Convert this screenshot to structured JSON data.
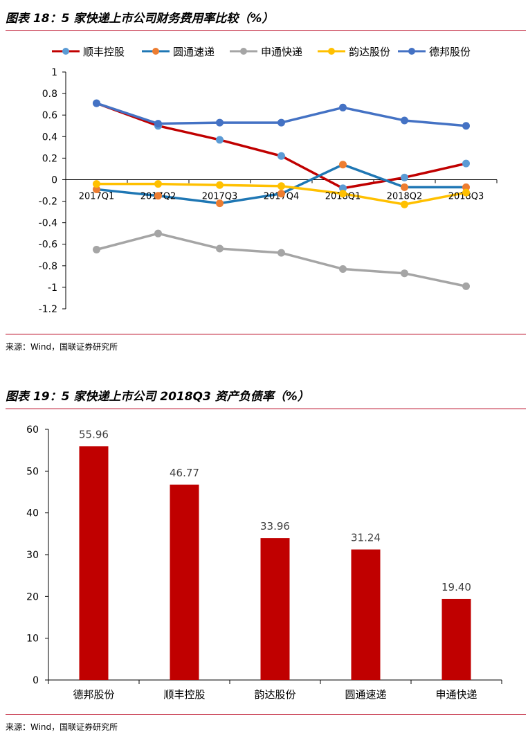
{
  "charts": [
    {
      "title": "图表 18：5 家快递上市公司财务费用率比较（%）",
      "source": "来源：Wind，国联证券研究所",
      "chart_data": {
        "type": "line",
        "categories": [
          "2017Q1",
          "2017Q2",
          "2017Q3",
          "2017Q4",
          "2018Q1",
          "2018Q2",
          "2018Q3"
        ],
        "ylim": [
          -1.2,
          1
        ],
        "yticks": [
          1,
          0.8,
          0.6,
          0.4,
          0.2,
          0,
          -0.2,
          -0.4,
          -0.6,
          -0.8,
          -1,
          -1.2
        ],
        "ytick_labels": [
          "1",
          "0.8",
          "0.6",
          "0.4",
          "0.2",
          "0",
          "-0.2",
          "-0.4",
          "-0.6",
          "-0.8",
          "-1",
          "-1.2"
        ],
        "legend_position": "top",
        "series": [
          {
            "name": "顺丰控股",
            "line_color": "#c00000",
            "marker_color": "#5b9bd5",
            "values": [
              0.71,
              0.5,
              0.37,
              0.22,
              -0.08,
              0.02,
              0.15
            ]
          },
          {
            "name": "圆通速递",
            "line_color": "#1f77b4",
            "marker_color": "#ed7d31",
            "values": [
              -0.09,
              -0.15,
              -0.22,
              -0.13,
              0.14,
              -0.07,
              -0.07
            ]
          },
          {
            "name": "申通快递",
            "line_color": "#a5a5a5",
            "marker_color": "#a5a5a5",
            "values": [
              -0.65,
              -0.5,
              -0.64,
              -0.68,
              -0.83,
              -0.87,
              -0.99
            ]
          },
          {
            "name": "韵达股份",
            "line_color": "#ffc000",
            "marker_color": "#ffc000",
            "values": [
              -0.04,
              -0.04,
              -0.05,
              -0.06,
              -0.13,
              -0.23,
              -0.12
            ]
          },
          {
            "name": "德邦股份",
            "line_color": "#4472c4",
            "marker_color": "#4472c4",
            "values": [
              0.71,
              0.52,
              0.53,
              0.53,
              0.67,
              0.55,
              0.5
            ]
          }
        ]
      }
    },
    {
      "title": "图表 19：5 家快递上市公司 2018Q3 资产负债率（%）",
      "source": "来源：Wind，国联证券研究所",
      "chart_data": {
        "type": "bar",
        "categories": [
          "德邦股份",
          "顺丰控股",
          "韵达股份",
          "圆通速递",
          "申通快递"
        ],
        "values": [
          55.96,
          46.77,
          33.96,
          31.24,
          19.4
        ],
        "value_labels": [
          "55.96",
          "46.77",
          "33.96",
          "31.24",
          "19.40"
        ],
        "ylim": [
          0,
          60
        ],
        "yticks": [
          60,
          50,
          40,
          30,
          20,
          10,
          0
        ],
        "ytick_labels": [
          "60",
          "50",
          "40",
          "30",
          "20",
          "10",
          "0"
        ],
        "bar_color": "#c00000"
      }
    }
  ]
}
